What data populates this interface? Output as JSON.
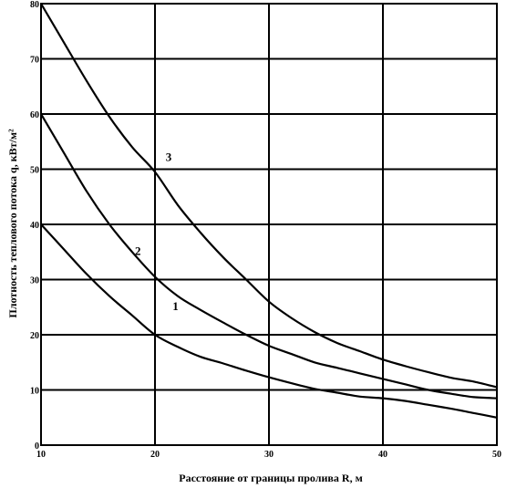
{
  "chart_data": {
    "type": "line",
    "title": "",
    "xlabel": "Расстояние от границы пролива   R, м",
    "ylabel": "Плотность теплового потока   q, кВт/м²",
    "xlim": [
      10,
      50
    ],
    "ylim": [
      0,
      80
    ],
    "x_ticks": [
      10,
      20,
      30,
      40,
      50
    ],
    "y_ticks": [
      0,
      10,
      20,
      30,
      40,
      50,
      60,
      70,
      80
    ],
    "grid": true,
    "legend": "none",
    "series": [
      {
        "name": "1",
        "x": [
          10,
          12,
          14,
          16,
          18,
          20,
          22,
          24,
          26,
          28,
          30,
          32,
          34,
          36,
          38,
          40,
          42,
          44,
          46,
          48,
          50
        ],
        "y": [
          40,
          35.5,
          31,
          27,
          23.5,
          20,
          17.8,
          16,
          14.8,
          13.5,
          12.3,
          11.2,
          10.2,
          9.5,
          8.8,
          8.5,
          8,
          7.3,
          6.6,
          5.8,
          5
        ]
      },
      {
        "name": "2",
        "x": [
          10,
          12,
          14,
          16,
          18,
          20,
          22,
          24,
          26,
          28,
          30,
          32,
          34,
          36,
          38,
          40,
          42,
          44,
          46,
          48,
          50
        ],
        "y": [
          60,
          53,
          46,
          40,
          35,
          30.5,
          27,
          24.5,
          22.2,
          20,
          18,
          16.5,
          15,
          14,
          13,
          12,
          11,
          10,
          9.3,
          8.7,
          8.5
        ]
      },
      {
        "name": "3",
        "x": [
          10,
          12,
          14,
          16,
          18,
          20,
          22,
          24,
          26,
          28,
          30,
          32,
          34,
          36,
          38,
          40,
          42,
          44,
          46,
          48,
          50
        ],
        "y": [
          80,
          73,
          66,
          59.5,
          54,
          49.5,
          43.5,
          38.5,
          34,
          30,
          26,
          23,
          20.5,
          18.5,
          17,
          15.5,
          14.3,
          13.2,
          12.2,
          11.5,
          10.5
        ]
      }
    ],
    "curve_labels": [
      {
        "text": "1",
        "x": 21.8,
        "y": 24.5
      },
      {
        "text": "2",
        "x": 18.5,
        "y": 34.5
      },
      {
        "text": "3",
        "x": 21.2,
        "y": 51.5
      }
    ]
  }
}
